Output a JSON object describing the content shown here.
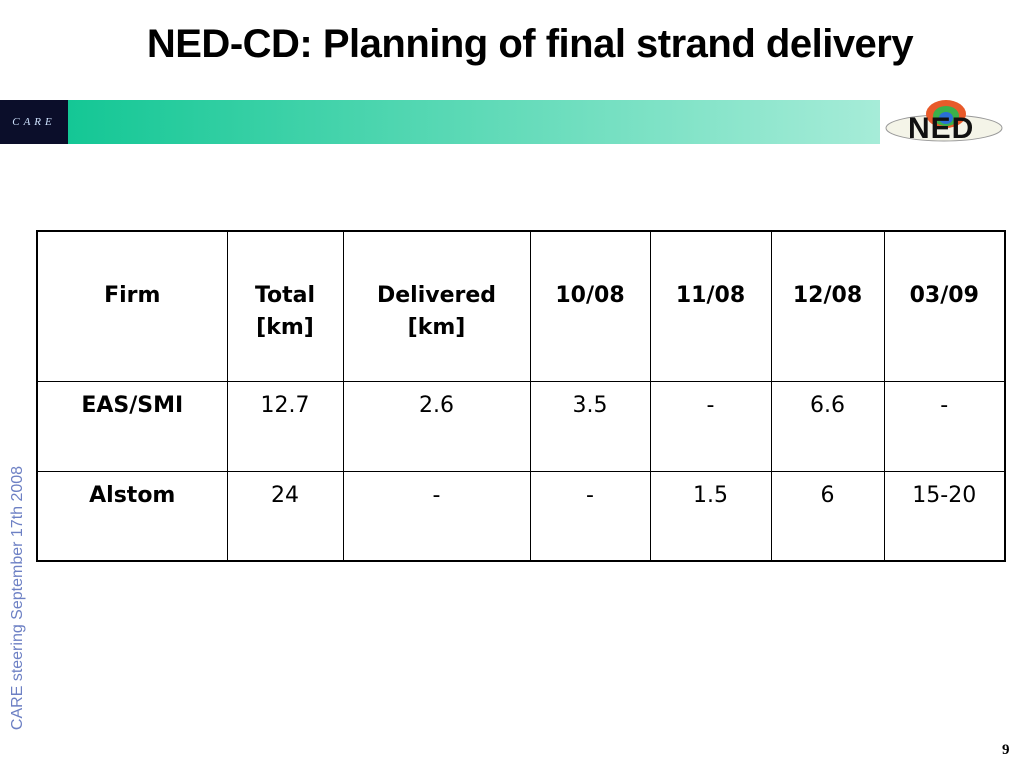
{
  "header": {
    "title": "NED-CD: Planning of final strand delivery",
    "left_logo": "CARE",
    "right_logo": "NED"
  },
  "sidebar": "CARE steering September 17th 2008",
  "page_number": "9",
  "table": {
    "columns": [
      "Firm",
      "Total\n[km]",
      "Delivered\n[km]",
      "10/08",
      "11/08",
      "12/08",
      "03/09"
    ],
    "rows": [
      [
        "EAS/SMI",
        "12.7",
        "2.6",
        "3.5",
        "-",
        "6.6",
        "-"
      ],
      [
        "Alstom",
        "24",
        "-",
        "-",
        "1.5",
        "6",
        "15-20"
      ]
    ]
  }
}
